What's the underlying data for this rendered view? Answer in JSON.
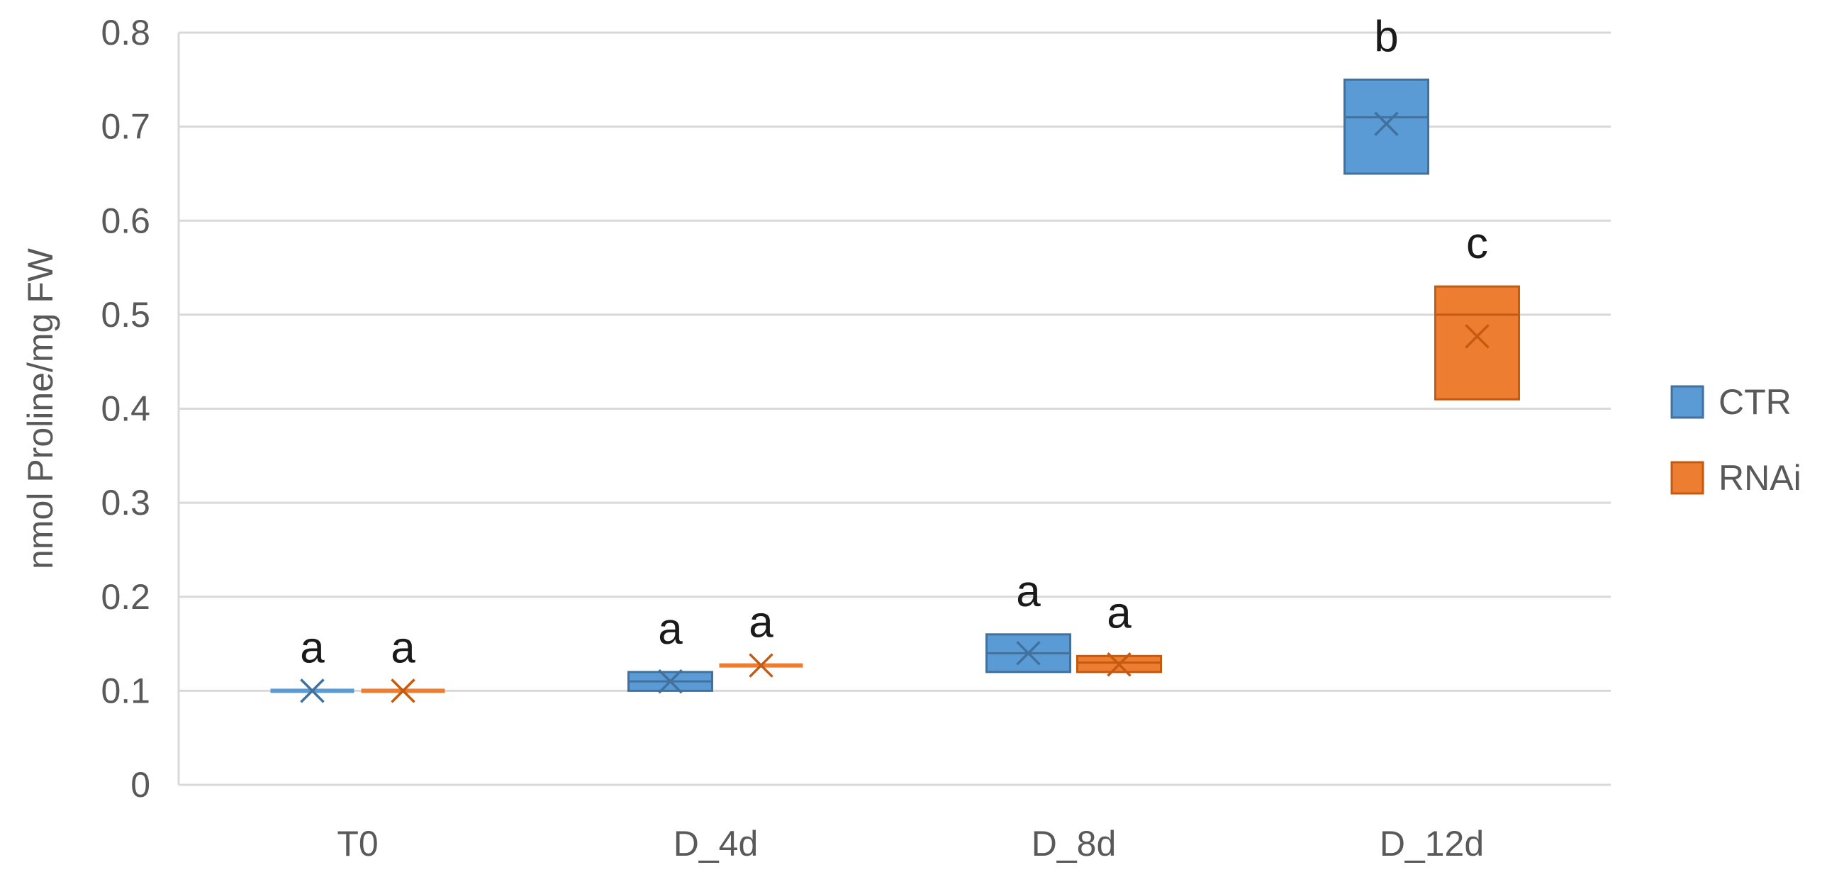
{
  "chart_data": {
    "type": "box",
    "title": "",
    "ylabel": "nmol Proline/mg FW",
    "xlabel": "",
    "ylim": [
      0,
      0.8
    ],
    "yticks": [
      0,
      0.1,
      0.2,
      0.3,
      0.4,
      0.5,
      0.6,
      0.7,
      0.8
    ],
    "ytick_labels": [
      "0",
      "0.1",
      "0.2",
      "0.3",
      "0.4",
      "0.5",
      "0.6",
      "0.7",
      "0.8"
    ],
    "grid": true,
    "legend_position": "right",
    "categories": [
      "T0",
      "D_4d",
      "D_8d",
      "D_12d"
    ],
    "series": [
      {
        "name": "CTR",
        "color": "#5b9bd5",
        "edge_color": "#41719c",
        "boxes": [
          {
            "min": 0.1,
            "q1": 0.1,
            "median": 0.1,
            "q3": 0.1,
            "max": 0.1,
            "mean": 0.1,
            "label": "a"
          },
          {
            "min": 0.1,
            "q1": 0.1,
            "median": 0.11,
            "q3": 0.12,
            "max": 0.12,
            "mean": 0.11,
            "label": "a"
          },
          {
            "min": 0.12,
            "q1": 0.12,
            "median": 0.14,
            "q3": 0.16,
            "max": 0.16,
            "mean": 0.14,
            "label": "a"
          },
          {
            "min": 0.65,
            "q1": 0.65,
            "median": 0.71,
            "q3": 0.75,
            "max": 0.75,
            "mean": 0.703,
            "label": "b"
          }
        ]
      },
      {
        "name": "RNAi",
        "color": "#ed7d31",
        "edge_color": "#c55a11",
        "boxes": [
          {
            "min": 0.1,
            "q1": 0.1,
            "median": 0.1,
            "q3": 0.1,
            "max": 0.1,
            "mean": 0.1,
            "label": "a"
          },
          {
            "min": 0.127,
            "q1": 0.127,
            "median": 0.127,
            "q3": 0.127,
            "max": 0.127,
            "mean": 0.127,
            "label": "a"
          },
          {
            "min": 0.12,
            "q1": 0.12,
            "median": 0.13,
            "q3": 0.137,
            "max": 0.137,
            "mean": 0.128,
            "label": "a"
          },
          {
            "min": 0.41,
            "q1": 0.41,
            "median": 0.5,
            "q3": 0.53,
            "max": 0.53,
            "mean": 0.477,
            "label": "c"
          }
        ]
      }
    ]
  }
}
